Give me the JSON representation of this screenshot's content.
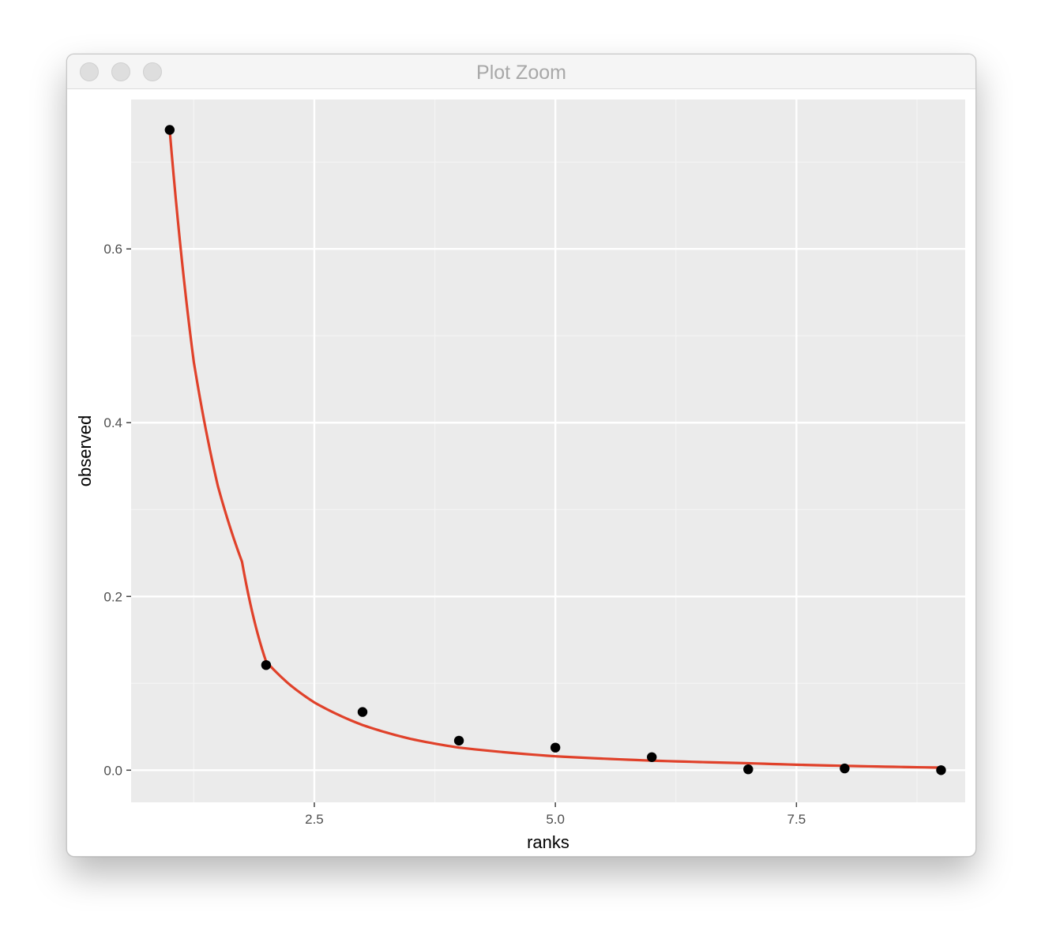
{
  "window": {
    "title": "Plot Zoom",
    "buttons": [
      "close",
      "minimize",
      "zoom"
    ]
  },
  "chart_data": {
    "type": "scatter",
    "title": "",
    "xlabel": "ranks",
    "ylabel": "observed",
    "xlim": [
      0.6,
      9.25
    ],
    "ylim": [
      -0.037,
      0.772
    ],
    "x_ticks": [
      2.5,
      5.0,
      7.5
    ],
    "x_tick_labels": [
      "2.5",
      "5.0",
      "7.5"
    ],
    "y_ticks": [
      0.0,
      0.2,
      0.4,
      0.6
    ],
    "y_tick_labels": [
      "0.0",
      "0.2",
      "0.4",
      "0.6"
    ],
    "grid": true,
    "series": [
      {
        "type": "scatter",
        "color": "#000000",
        "x": [
          1,
          2,
          3,
          4,
          5,
          6,
          7,
          8,
          9
        ],
        "y": [
          0.737,
          0.121,
          0.067,
          0.034,
          0.026,
          0.015,
          0.001,
          0.002,
          0.0
        ]
      },
      {
        "type": "line",
        "color": "#e0412a",
        "function": "power-law fit",
        "x": [
          1,
          1.25,
          1.5,
          1.75,
          2,
          2.25,
          2.5,
          3,
          3.5,
          4,
          5,
          6,
          7,
          8,
          9
        ],
        "y": [
          0.737,
          0.47,
          0.327,
          0.24,
          0.125,
          0.098,
          0.078,
          0.052,
          0.036,
          0.026,
          0.016,
          0.011,
          0.008,
          0.005,
          0.003
        ]
      }
    ],
    "colors": {
      "panel_background": "#ebebeb",
      "grid_major": "#ffffff",
      "grid_minor": "#f4f4f4",
      "points": "#000000",
      "fit_line": "#e0412a"
    }
  }
}
